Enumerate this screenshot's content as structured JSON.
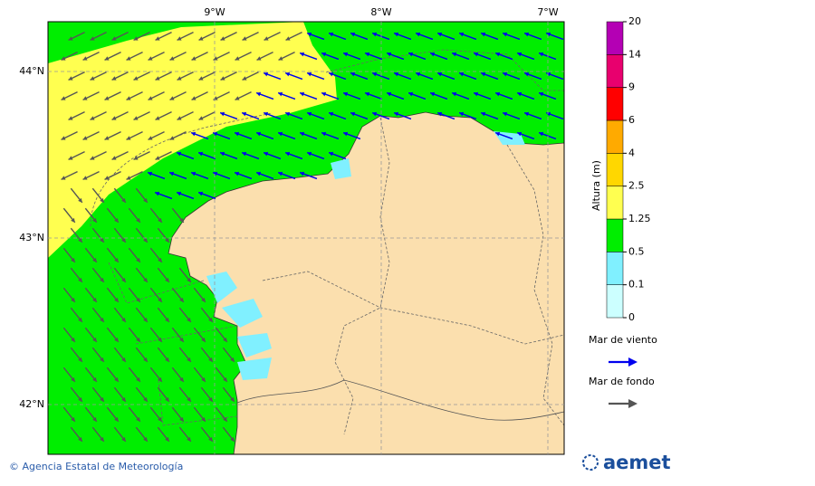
{
  "map": {
    "lon_labels": [
      "9°W",
      "8°W",
      "7°W"
    ],
    "lat_labels": [
      "44°N",
      "43°N",
      "42°N"
    ]
  },
  "colorbar": {
    "title": "Altura (m)",
    "levels": [
      0,
      0.1,
      0.5,
      1.25,
      2.5,
      4,
      6,
      9,
      14,
      20
    ],
    "colors": [
      "#ccffff",
      "#80f0ff",
      "#00ee00",
      "#ffff50",
      "#ffd700",
      "#ffaa00",
      "#ff0000",
      "#e8006e",
      "#b400b4"
    ]
  },
  "legend": [
    {
      "label": "Mar de viento",
      "color": "#0000ee"
    },
    {
      "label": "Mar de fondo",
      "color": "#555555"
    }
  ],
  "footer": {
    "credit": "© Agencia Estatal de Meteorología",
    "logo": "aemet"
  }
}
